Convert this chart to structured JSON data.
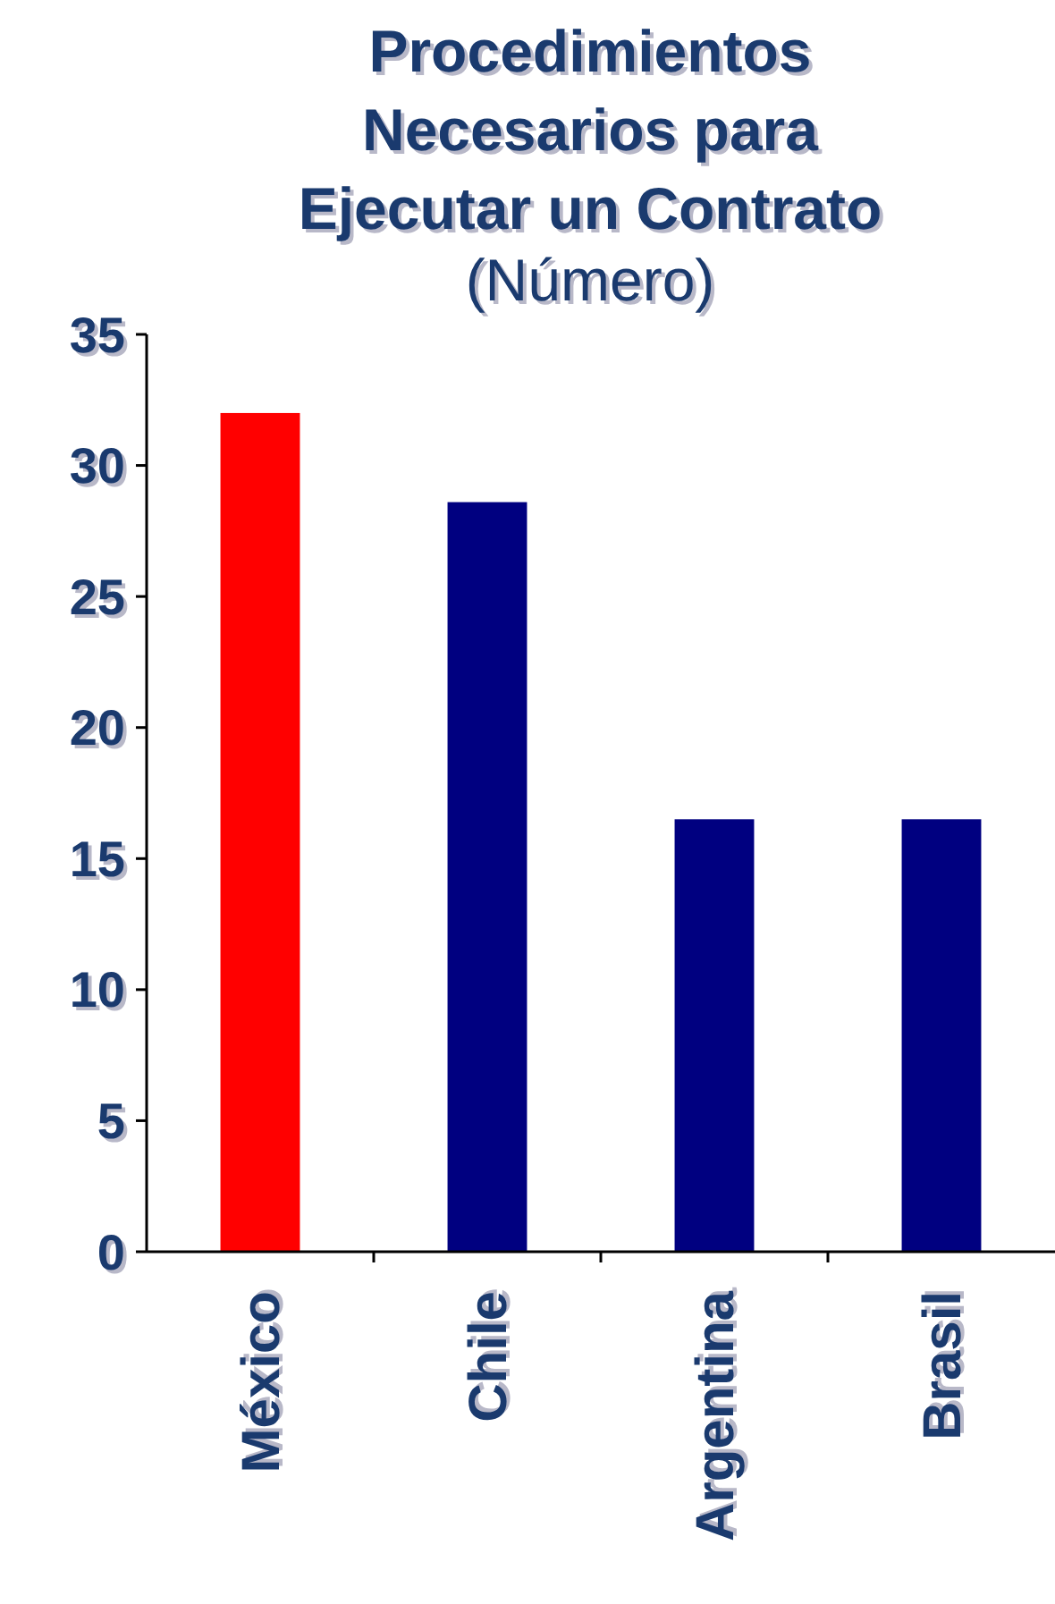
{
  "chart_data": {
    "type": "bar",
    "title": "Procedimientos Necesarios para Ejecutar un Contrato",
    "subtitle": "(Número)",
    "categories": [
      "México",
      "Chile",
      "Argentina",
      "Brasil"
    ],
    "values": [
      32,
      28.6,
      16.5,
      16.5
    ],
    "colors": [
      "#ff0000",
      "#000080",
      "#000080",
      "#000080"
    ],
    "ylim": [
      0,
      35
    ],
    "yticks": [
      0,
      5,
      10,
      15,
      20,
      25,
      30,
      35
    ],
    "grid": false
  }
}
